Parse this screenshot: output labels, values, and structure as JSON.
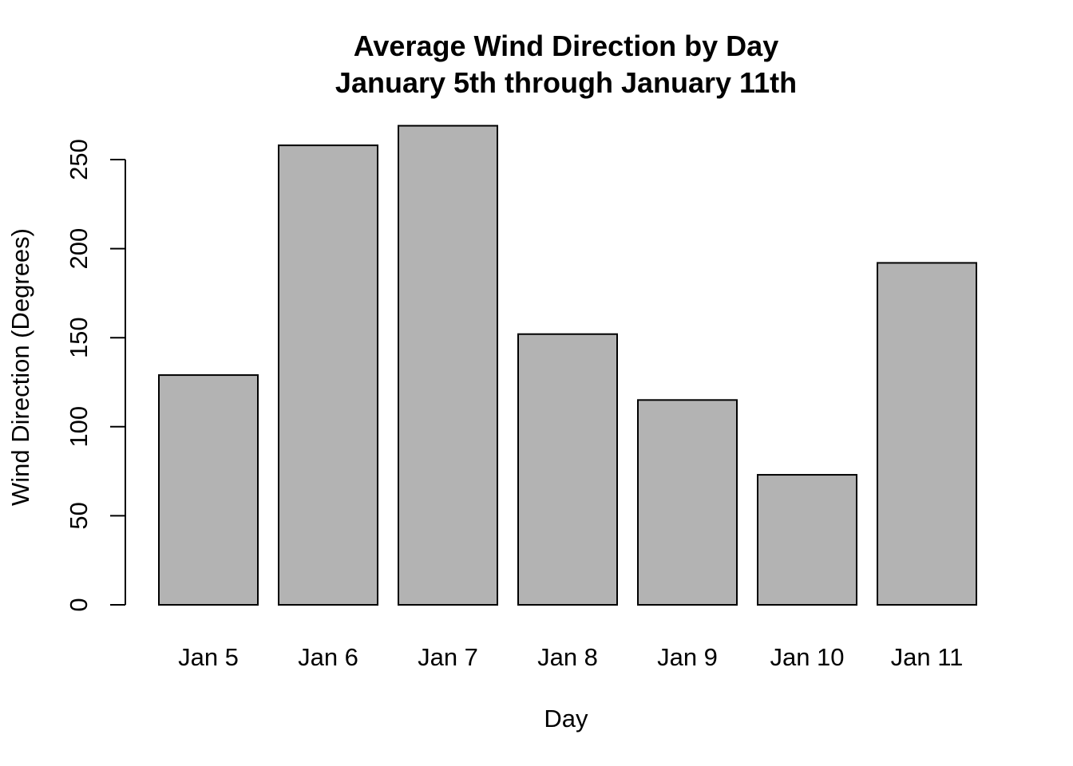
{
  "chart_data": {
    "type": "bar",
    "title": "Average Wind Direction by Day",
    "subtitle": "January 5th through January 11th",
    "xlabel": "Day",
    "ylabel": "Wind Direction (Degrees)",
    "categories": [
      "Jan 5",
      "Jan 6",
      "Jan 7",
      "Jan 8",
      "Jan 9",
      "Jan 10",
      "Jan 11"
    ],
    "values": [
      129,
      258,
      269,
      152,
      115,
      73,
      192
    ],
    "ylim": [
      0,
      270
    ],
    "yticks": [
      0,
      50,
      100,
      150,
      200,
      250
    ],
    "bar_color": "#b3b3b3",
    "grid": false,
    "legend": "none"
  }
}
